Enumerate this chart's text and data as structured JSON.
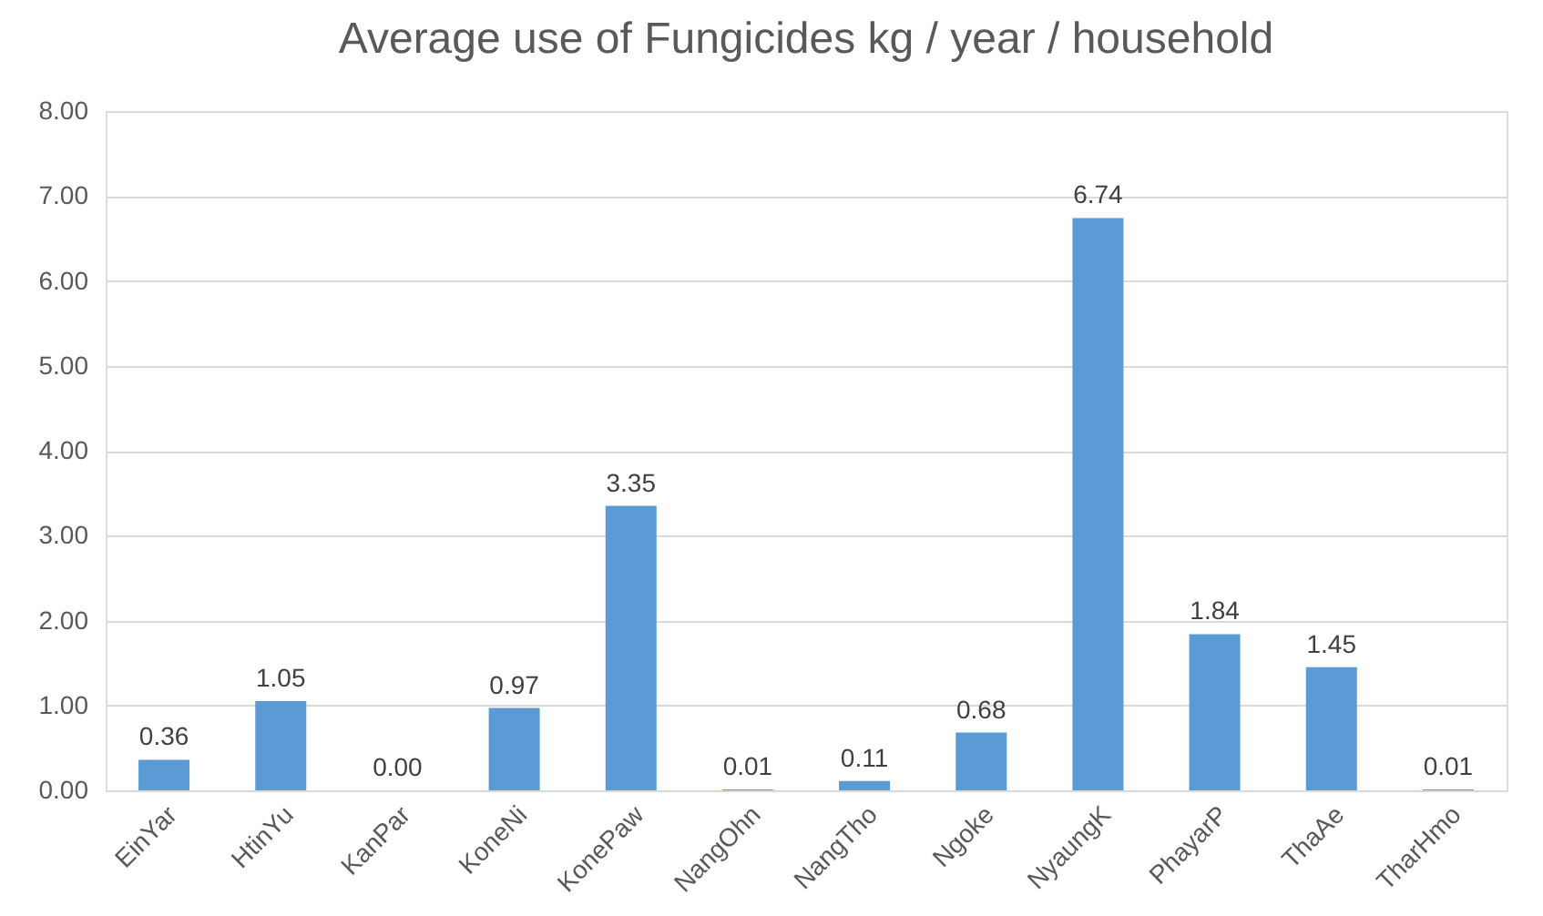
{
  "chart_data": {
    "type": "bar",
    "title": "Average use of Fungicides kg / year / household",
    "categories": [
      "EinYar",
      "HtinYu",
      "KanPar",
      "KoneNi",
      "KonePaw",
      "NangOhn",
      "NangTho",
      "Ngoke",
      "NyaungK",
      "PhayarP",
      "ThaAe",
      "TharHmo"
    ],
    "values": [
      0.36,
      1.05,
      0.0,
      0.97,
      3.35,
      0.01,
      0.11,
      0.68,
      6.74,
      1.84,
      1.45,
      0.01
    ],
    "value_labels": [
      "0.36",
      "1.05",
      "0.00",
      "0.97",
      "3.35",
      "0.01",
      "0.11",
      "0.68",
      "6.74",
      "1.84",
      "1.45",
      "0.01"
    ],
    "color": "#5b9bd5",
    "ylim": [
      0,
      8
    ],
    "yticks": [
      {
        "value": 0,
        "label": "0.00"
      },
      {
        "value": 1,
        "label": "1.00"
      },
      {
        "value": 2,
        "label": "2.00"
      },
      {
        "value": 3,
        "label": "3.00"
      },
      {
        "value": 4,
        "label": "4.00"
      },
      {
        "value": 5,
        "label": "5.00"
      },
      {
        "value": 6,
        "label": "6.00"
      },
      {
        "value": 7,
        "label": "7.00"
      },
      {
        "value": 8,
        "label": "8.00"
      }
    ],
    "grid": "y"
  }
}
